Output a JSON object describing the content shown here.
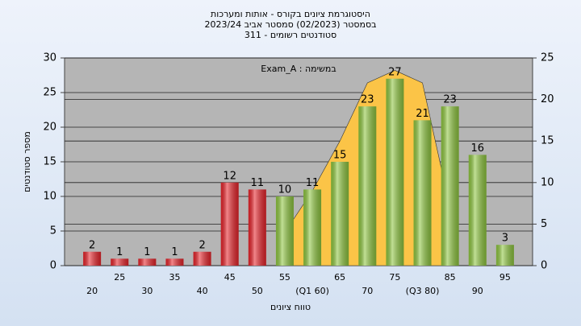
{
  "chart_data": {
    "type": "bar",
    "title": [
      "היסטוגרמת ציונים בקורס - אותות ומערכות",
      "בסמסטר (02/2023) סמסטר אביב 2023/24",
      "סטודנטים רשומים - 311"
    ],
    "annotation": "במשימה : Exam_A",
    "x_label": "טווח ציונים",
    "y_label": "מספר סטודנטים",
    "categories": [
      "20",
      "25",
      "30",
      "35",
      "40",
      "45",
      "50",
      "55",
      "(Q1 60)",
      "65",
      "70",
      "75",
      "(Q3 80)",
      "85",
      "90",
      "95"
    ],
    "values": [
      2,
      1,
      1,
      1,
      2,
      12,
      11,
      10,
      11,
      15,
      23,
      27,
      21,
      23,
      16,
      3
    ],
    "colors": [
      "#e8232a",
      "#e8232a",
      "#e8232a",
      "#e8232a",
      "#e8232a",
      "#e8232a",
      "#e8232a",
      "#8ec63f",
      "#8ec63f",
      "#8ec63f",
      "#8ec63f",
      "#8ec63f",
      "#8ec63f",
      "#8ec63f",
      "#8ec63f",
      "#8ec63f"
    ],
    "area": {
      "color": "#fbc447",
      "axis": "y2",
      "values": [
        null,
        null,
        null,
        null,
        null,
        null,
        null,
        4,
        9,
        15,
        22,
        23.5,
        22,
        7,
        null,
        null
      ]
    },
    "ylim": [
      0,
      30
    ],
    "yticks": [
      0,
      5,
      10,
      15,
      20,
      25,
      30
    ],
    "y2lim": [
      0,
      25
    ],
    "y2ticks": [
      0,
      5,
      10,
      15,
      20,
      25
    ],
    "grid": true
  }
}
